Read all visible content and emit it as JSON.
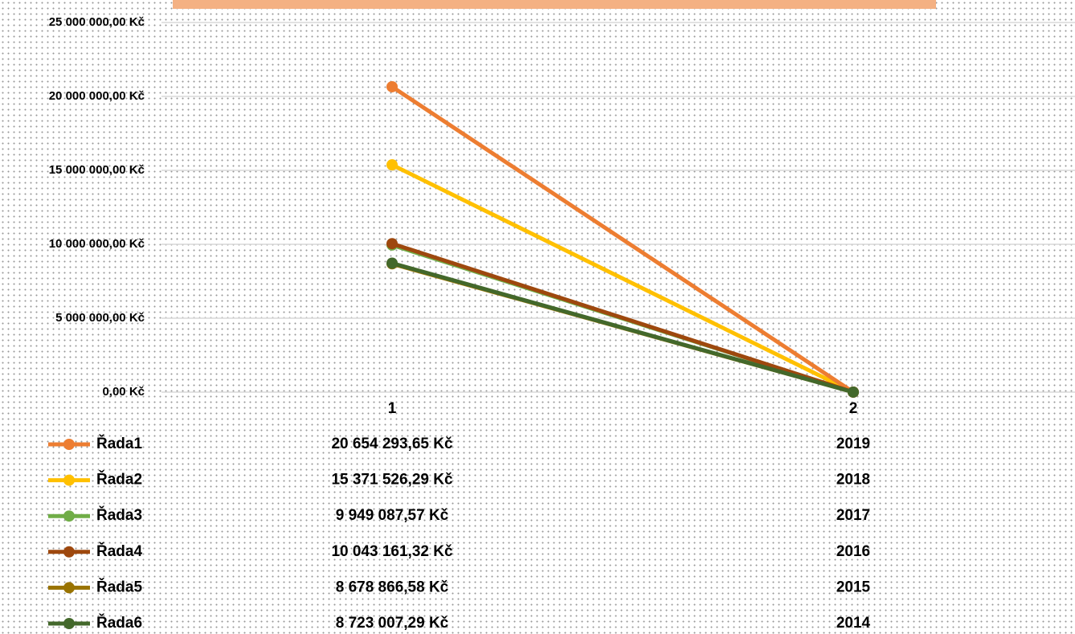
{
  "chart_data": {
    "type": "line",
    "categories": [
      "1",
      "2"
    ],
    "series": [
      {
        "name": "Řada1",
        "color": "#ED7D31",
        "values": [
          20654293.65,
          2019
        ],
        "value_labels": [
          "20 654 293,65 Kč",
          "2019"
        ]
      },
      {
        "name": "Řada2",
        "color": "#FFC000",
        "values": [
          15371526.29,
          2018
        ],
        "value_labels": [
          "15 371 526,29 Kč",
          "2018"
        ]
      },
      {
        "name": "Řada3",
        "color": "#70AD47",
        "values": [
          9949087.57,
          2017
        ],
        "value_labels": [
          "9 949 087,57 Kč",
          "2017"
        ]
      },
      {
        "name": "Řada4",
        "color": "#9E480E",
        "values": [
          10043161.32,
          2016
        ],
        "value_labels": [
          "10 043 161,32 Kč",
          "2016"
        ]
      },
      {
        "name": "Řada5",
        "color": "#997300",
        "values": [
          8678866.58,
          2015
        ],
        "value_labels": [
          "8 678 866,58 Kč",
          "2015"
        ]
      },
      {
        "name": "Řada6",
        "color": "#43682B",
        "values": [
          8723007.29,
          2014
        ],
        "value_labels": [
          "8 723 007,29 Kč",
          "2014"
        ]
      }
    ],
    "ylim": [
      0,
      25000000
    ],
    "yticks": [
      {
        "value": 0,
        "label": "0,00 Kč"
      },
      {
        "value": 5000000,
        "label": "5 000 000,00 Kč"
      },
      {
        "value": 10000000,
        "label": "10 000 000,00 Kč"
      },
      {
        "value": 15000000,
        "label": "15 000 000,00 Kč"
      },
      {
        "value": 20000000,
        "label": "20 000 000,00 Kč"
      },
      {
        "value": 25000000,
        "label": "25 000 000,00 Kč"
      }
    ],
    "grid": true
  }
}
